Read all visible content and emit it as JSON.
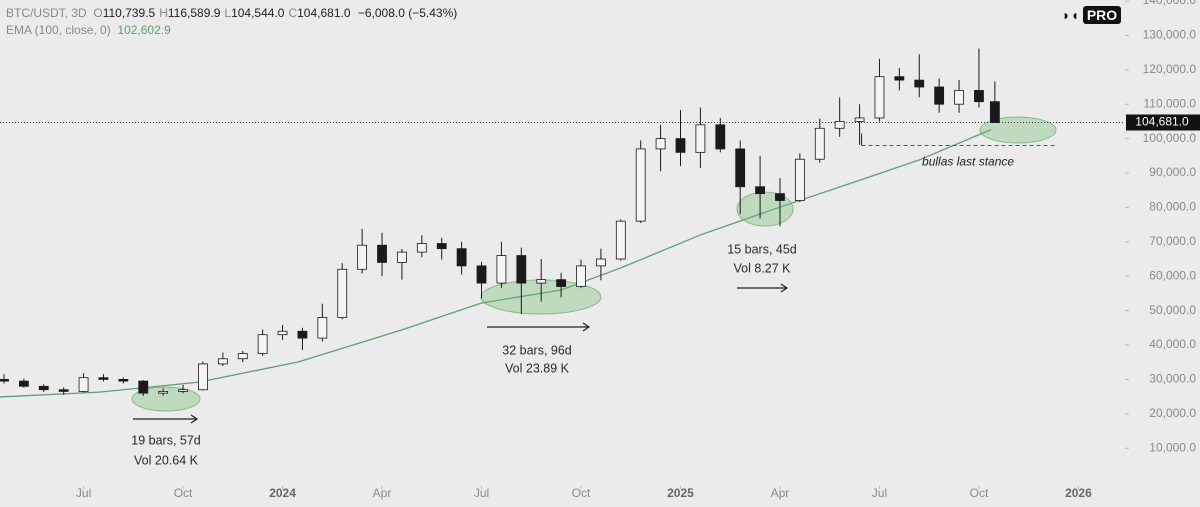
{
  "header": {
    "symbol": "BTC/USDT, 3D",
    "ohlc": [
      {
        "key": "O",
        "value": "110,739.5"
      },
      {
        "key": "H",
        "value": "116,589.9"
      },
      {
        "key": "L",
        "value": "104,544.0"
      },
      {
        "key": "C",
        "value": "104,681.0"
      }
    ],
    "change": "−6,008.0 (−5.43%)",
    "ema_value": "102,602.9",
    "logo": "PRO"
  },
  "chart_data": {
    "type": "candlestick",
    "xlim": [
      2023.29,
      2026.117
    ],
    "ylim": [
      0,
      140000
    ],
    "xticks": [
      {
        "value": 2023.5,
        "label": "Jul"
      },
      {
        "value": 2023.75,
        "label": "Oct"
      },
      2024,
      {
        "value": 2024.25,
        "label": "Apr"
      },
      {
        "value": 2024.5,
        "label": "Jul"
      },
      {
        "value": 2024.75,
        "label": "Oct"
      },
      2025,
      {
        "value": 2025.25,
        "label": "Apr"
      },
      {
        "value": 2025.5,
        "label": "Jul"
      },
      {
        "value": 2025.75,
        "label": "Oct"
      },
      2026
    ],
    "yticks": [
      {
        "value": 10000,
        "label": "10,000.0"
      },
      {
        "value": 20000,
        "label": "20,000.0"
      },
      {
        "value": 30000,
        "label": "30,000.0"
      },
      {
        "value": 40000,
        "label": "40,000.0"
      },
      {
        "value": 50000,
        "label": "50,000.0"
      },
      {
        "value": 60000,
        "label": "60,000.0"
      },
      {
        "value": 70000,
        "label": "70,000.0"
      },
      {
        "value": 80000,
        "label": "80,000.0"
      },
      {
        "value": 90000,
        "label": "90,000.0"
      },
      {
        "value": 100000,
        "label": "100,000.0"
      },
      {
        "value": 110000,
        "label": "110,000.0"
      },
      {
        "value": 120000,
        "label": "120,000.0"
      },
      {
        "value": 130000,
        "label": "130,000.0"
      },
      {
        "value": 140000,
        "label": "140,000.0"
      }
    ],
    "up_color": "#f4f4f4",
    "down_color": "#1a1a1a",
    "wick_color": "#1a1a1a",
    "candles": {
      "x": [
        2023.3,
        2023.35,
        2023.4,
        2023.45,
        2023.5,
        2023.55,
        2023.6,
        2023.65,
        2023.7,
        2023.75,
        2023.8,
        2023.85,
        2023.9,
        2023.95,
        2024.0,
        2024.05,
        2024.1,
        2024.15,
        2024.2,
        2024.25,
        2024.3,
        2024.35,
        2024.4,
        2024.45,
        2024.5,
        2024.55,
        2024.6,
        2024.65,
        2024.7,
        2024.75,
        2024.8,
        2024.85,
        2024.9,
        2024.95,
        2025.0,
        2025.05,
        2025.1,
        2025.15,
        2025.2,
        2025.25,
        2025.3,
        2025.35,
        2025.4,
        2025.45,
        2025.5,
        2025.55,
        2025.6,
        2025.65,
        2025.7,
        2025.75,
        2025.79
      ],
      "open": [
        30000,
        29500,
        28000,
        27000,
        26500,
        30500,
        30000,
        29500,
        26000,
        26500,
        27000,
        34500,
        36000,
        37500,
        43000,
        44000,
        42000,
        48000,
        62000,
        69000,
        64000,
        67000,
        69500,
        68000,
        63000,
        58000,
        66000,
        58000,
        59000,
        57000,
        63000,
        65000,
        76000,
        97000,
        100000,
        96000,
        104000,
        97000,
        86000,
        84000,
        82000,
        94000,
        103000,
        105000,
        106000,
        118000,
        117000,
        115000,
        110000,
        114000,
        110739.5
      ],
      "high": [
        31500,
        30200,
        28600,
        27700,
        31800,
        31500,
        30500,
        29800,
        27400,
        28400,
        35200,
        37800,
        38300,
        44500,
        45800,
        45000,
        52000,
        63800,
        73700,
        72600,
        67900,
        71900,
        71200,
        70000,
        64200,
        70000,
        68300,
        65000,
        61000,
        64800,
        68000,
        76500,
        99500,
        104000,
        108300,
        109000,
        106000,
        99500,
        95000,
        88500,
        95700,
        105800,
        112000,
        110000,
        123200,
        120500,
        124500,
        117500,
        117000,
        126200,
        116589.9
      ],
      "low": [
        28800,
        27600,
        26300,
        25500,
        26200,
        29400,
        28800,
        25200,
        25300,
        26000,
        26800,
        33900,
        35000,
        36800,
        41500,
        38600,
        41000,
        47500,
        60800,
        60000,
        59000,
        65500,
        64800,
        60500,
        53500,
        56600,
        49000,
        52600,
        53800,
        56500,
        58800,
        64500,
        75500,
        90500,
        92000,
        91500,
        96000,
        78000,
        76800,
        74500,
        81500,
        93000,
        100500,
        98200,
        105000,
        114000,
        112000,
        107500,
        107500,
        109000,
        104544
      ],
      "close": [
        29500,
        28000,
        27000,
        26500,
        30500,
        30000,
        29500,
        26000,
        26500,
        27000,
        34500,
        36000,
        37500,
        43000,
        44000,
        42000,
        48000,
        62000,
        69000,
        64000,
        67000,
        69500,
        68000,
        63000,
        58000,
        66000,
        58000,
        59000,
        57000,
        63000,
        65000,
        76000,
        97000,
        100000,
        96000,
        104000,
        97000,
        86000,
        84000,
        82000,
        94000,
        103000,
        105000,
        106000,
        118000,
        117000,
        115000,
        110000,
        114000,
        110739.5,
        104681
      ]
    },
    "ema": {
      "name": "EMA (100, close, 0)",
      "color": "#5c9f72",
      "x": [
        2023.29,
        2023.54,
        2023.79,
        2024.04,
        2024.3,
        2024.5,
        2024.7,
        2024.85,
        2025.05,
        2025.25,
        2025.43,
        2025.6,
        2025.78
      ],
      "values": [
        24900,
        26300,
        29200,
        35100,
        44400,
        52200,
        56000,
        62400,
        72000,
        80100,
        87100,
        93800,
        102602.9
      ]
    },
    "last_price": {
      "value": 104681,
      "label": "104,681.0"
    },
    "support": {
      "value": 98000,
      "x": [
        2025.455,
        2025.94
      ],
      "label": "bullas last stance",
      "color": "#a0306a"
    },
    "annotations": [
      {
        "lines": [
          "19 bars, 57d",
          "Vol 20.64 K"
        ]
      },
      {
        "lines": [
          "32 bars, 96d",
          "Vol 23.89 K"
        ]
      },
      {
        "lines": [
          "15 bars, 45d",
          "Vol 8.27 K"
        ]
      }
    ]
  }
}
